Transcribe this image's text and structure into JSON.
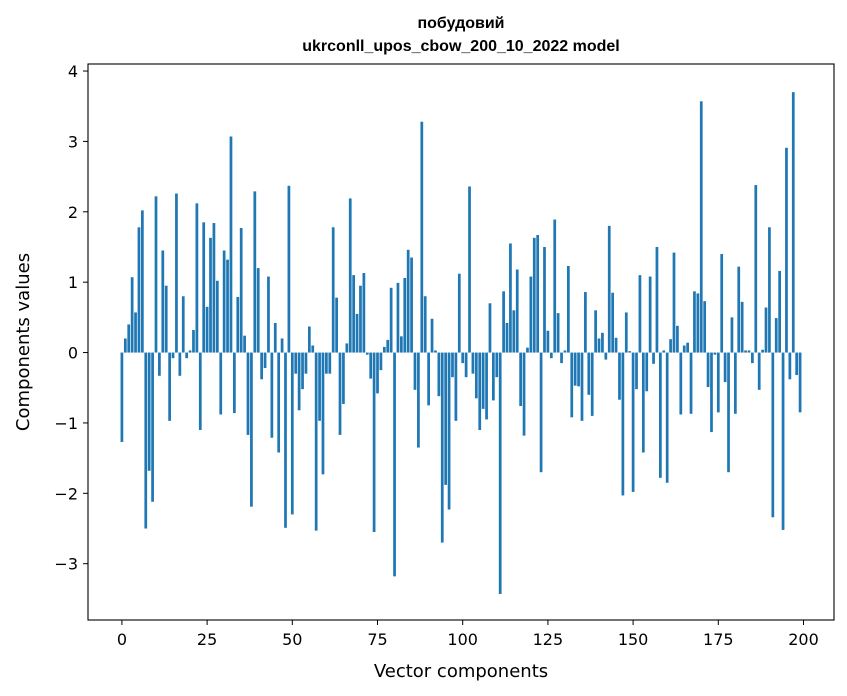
{
  "chart_data": {
    "type": "bar",
    "title_line1": "побудовий",
    "title_line2": "ukrconll_upos_cbow_200_10_2022 model",
    "xlabel": "Vector components",
    "ylabel": "Components values",
    "xlim": [
      -9.95,
      208.95
    ],
    "ylim": [
      -3.8,
      4.1
    ],
    "xticks": [
      0,
      25,
      50,
      75,
      100,
      125,
      150,
      175,
      200
    ],
    "xtick_labels": [
      "0",
      "25",
      "50",
      "75",
      "100",
      "125",
      "150",
      "175",
      "200"
    ],
    "yticks": [
      -3,
      -2,
      -1,
      0,
      1,
      2,
      3,
      4
    ],
    "ytick_labels": [
      "−3",
      "−2",
      "−1",
      "0",
      "1",
      "2",
      "3",
      "4"
    ],
    "bar_color": "#1f77b4",
    "grid": false,
    "x": [
      0,
      1,
      2,
      3,
      4,
      5,
      6,
      7,
      8,
      9,
      10,
      11,
      12,
      13,
      14,
      15,
      16,
      17,
      18,
      19,
      20,
      21,
      22,
      23,
      24,
      25,
      26,
      27,
      28,
      29,
      30,
      31,
      32,
      33,
      34,
      35,
      36,
      37,
      38,
      39,
      40,
      41,
      42,
      43,
      44,
      45,
      46,
      47,
      48,
      49,
      50,
      51,
      52,
      53,
      54,
      55,
      56,
      57,
      58,
      59,
      60,
      61,
      62,
      63,
      64,
      65,
      66,
      67,
      68,
      69,
      70,
      71,
      72,
      73,
      74,
      75,
      76,
      77,
      78,
      79,
      80,
      81,
      82,
      83,
      84,
      85,
      86,
      87,
      88,
      89,
      90,
      91,
      92,
      93,
      94,
      95,
      96,
      97,
      98,
      99,
      100,
      101,
      102,
      103,
      104,
      105,
      106,
      107,
      108,
      109,
      110,
      111,
      112,
      113,
      114,
      115,
      116,
      117,
      118,
      119,
      120,
      121,
      122,
      123,
      124,
      125,
      126,
      127,
      128,
      129,
      130,
      131,
      132,
      133,
      134,
      135,
      136,
      137,
      138,
      139,
      140,
      141,
      142,
      143,
      144,
      145,
      146,
      147,
      148,
      149,
      150,
      151,
      152,
      153,
      154,
      155,
      156,
      157,
      158,
      159,
      160,
      161,
      162,
      163,
      164,
      165,
      166,
      167,
      168,
      169,
      170,
      171,
      172,
      173,
      174,
      175,
      176,
      177,
      178,
      179,
      180,
      181,
      182,
      183,
      184,
      185,
      186,
      187,
      188,
      189,
      190,
      191,
      192,
      193,
      194,
      195,
      196,
      197,
      198,
      199
    ],
    "values": [
      -1.27,
      0.2,
      0.4,
      1.07,
      0.57,
      1.78,
      2.02,
      -2.5,
      -1.68,
      -2.12,
      2.22,
      -0.33,
      1.45,
      0.95,
      -0.97,
      -0.08,
      2.26,
      -0.33,
      0.8,
      -0.08,
      0.03,
      0.32,
      2.12,
      -1.1,
      1.85,
      0.65,
      1.63,
      1.84,
      1.02,
      -0.88,
      1.45,
      1.32,
      3.07,
      -0.86,
      0.79,
      1.77,
      0.24,
      -1.17,
      -2.19,
      2.29,
      1.2,
      -0.38,
      -0.22,
      1.08,
      -1.21,
      0.42,
      -1.42,
      0.2,
      -2.49,
      2.37,
      -2.3,
      -0.3,
      -0.82,
      -0.52,
      -0.3,
      0.37,
      0.1,
      -2.53,
      -0.97,
      -1.73,
      -0.3,
      -0.3,
      1.78,
      0.78,
      -1.17,
      -0.73,
      0.13,
      2.19,
      1.1,
      0.55,
      0.95,
      1.13,
      -0.03,
      -0.37,
      -2.55,
      -0.58,
      -0.25,
      0.08,
      0.18,
      0.92,
      -3.18,
      0.99,
      0.23,
      1.06,
      1.46,
      1.35,
      -0.53,
      -1.35,
      3.28,
      0.8,
      -0.75,
      0.48,
      0.03,
      -0.62,
      -2.7,
      -1.88,
      -2.23,
      -0.35,
      -0.97,
      1.12,
      -0.15,
      -0.35,
      2.36,
      -0.3,
      -0.65,
      -1.1,
      -0.8,
      -0.95,
      0.7,
      -0.68,
      -0.35,
      -3.43,
      0.87,
      0.42,
      1.55,
      0.6,
      1.18,
      -0.76,
      -1.18,
      0.07,
      1.08,
      1.63,
      1.67,
      -1.7,
      1.5,
      0.31,
      -0.08,
      1.89,
      0.56,
      -0.15,
      0.03,
      1.23,
      -0.92,
      -0.47,
      -0.48,
      -0.97,
      0.86,
      -0.6,
      -0.9,
      0.6,
      0.2,
      0.28,
      -0.1,
      1.8,
      0.85,
      0.21,
      -0.67,
      -2.03,
      0.57,
      0.02,
      -1.98,
      -0.52,
      1.1,
      -1.42,
      -0.55,
      1.08,
      -0.16,
      1.5,
      -1.78,
      0.03,
      -1.85,
      0.19,
      1.42,
      0.38,
      -0.88,
      0.1,
      0.14,
      -0.87,
      0.87,
      0.84,
      3.57,
      0.73,
      -0.49,
      -1.13,
      -0.03,
      -0.85,
      1.4,
      -0.42,
      -1.7,
      0.5,
      -0.87,
      1.22,
      0.72,
      0.03,
      0.03,
      -0.15,
      2.38,
      -0.53,
      0.04,
      0.64,
      1.78,
      -2.34,
      0.49,
      1.16,
      -2.52,
      2.91,
      -0.38,
      3.7,
      -0.32,
      -0.85
    ]
  }
}
